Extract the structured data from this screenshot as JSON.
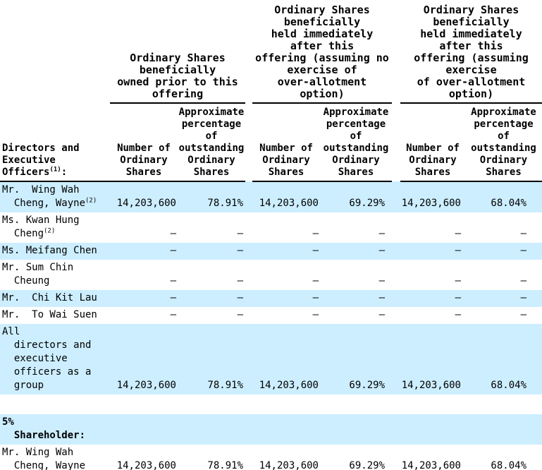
{
  "accent_colors": {
    "row_shading": "#CCEEFF",
    "text": "#000000",
    "rule": "#000000"
  },
  "table": {
    "row_header": {
      "label": "Directors and\nExecutive\nOfficers",
      "sup": "(1)",
      "suffix": ":"
    },
    "groups": [
      {
        "title": "Ordinary Shares\nbeneficially\nowned prior to this\noffering"
      },
      {
        "title": "Ordinary Shares\nbeneficially\nheld immediately\nafter this\noffering (assuming no\nexercise of\nover-allotment\noption)"
      },
      {
        "title": "Ordinary Shares\nbeneficially\nheld immediately\nafter this\noffering (assuming\nexercise\nof over-allotment\noption)"
      }
    ],
    "subheaders": {
      "number": "Number of\nOrdinary\nShares",
      "percent": "Approximate\npercentage\nof\noutstanding\nOrdinary\nShares"
    },
    "rows": [
      {
        "type": "data",
        "shaded": true,
        "bold": false,
        "label": "Mr.  Wing Wah\n  Cheng, Wayne",
        "sup": "(2)",
        "values": [
          "14,203,600",
          "78.91%",
          "14,203,600",
          "69.29%",
          "14,203,600",
          "68.04%"
        ]
      },
      {
        "type": "data",
        "shaded": false,
        "bold": false,
        "label": "Ms. Kwan Hung\n  Cheng",
        "sup": "(2)",
        "values": [
          "—",
          "—",
          "—",
          "—",
          "—",
          "—"
        ]
      },
      {
        "type": "data",
        "shaded": true,
        "bold": false,
        "label": "Ms. Meifang Chen",
        "sup": "",
        "values": [
          "—",
          "—",
          "—",
          "—",
          "—",
          "—"
        ]
      },
      {
        "type": "data",
        "shaded": false,
        "bold": false,
        "label": "Mr. Sum Chin\n  Cheung",
        "sup": "",
        "values": [
          "—",
          "—",
          "—",
          "—",
          "—",
          "—"
        ]
      },
      {
        "type": "data",
        "shaded": true,
        "bold": false,
        "label": "Mr.  Chi Kit Lau",
        "sup": "",
        "values": [
          "—",
          "—",
          "—",
          "—",
          "—",
          "—"
        ]
      },
      {
        "type": "data",
        "shaded": false,
        "bold": false,
        "label": "Mr.  To Wai Suen",
        "sup": "",
        "values": [
          "—",
          "—",
          "—",
          "—",
          "—",
          "—"
        ]
      },
      {
        "type": "data",
        "shaded": true,
        "bold": false,
        "label": "All\n  directors and\n  executive\n  officers as a\n  group",
        "sup": "",
        "values": [
          "14,203,600",
          "78.91%",
          "14,203,600",
          "69.29%",
          "14,203,600",
          "68.04%"
        ]
      },
      {
        "type": "spacer"
      },
      {
        "type": "data",
        "shaded": true,
        "bold": true,
        "label": "5%\n  Shareholder:",
        "sup": "",
        "values": [
          "",
          "",
          "",
          "",
          "",
          ""
        ]
      },
      {
        "type": "data",
        "shaded": false,
        "bold": false,
        "label": "Mr. Wing Wah\n  Cheng, Wayne",
        "sup": "",
        "values": [
          "14,203,600",
          "78.91%",
          "14,203,600",
          "69.29%",
          "14,203,600",
          "68.04%"
        ]
      }
    ]
  }
}
